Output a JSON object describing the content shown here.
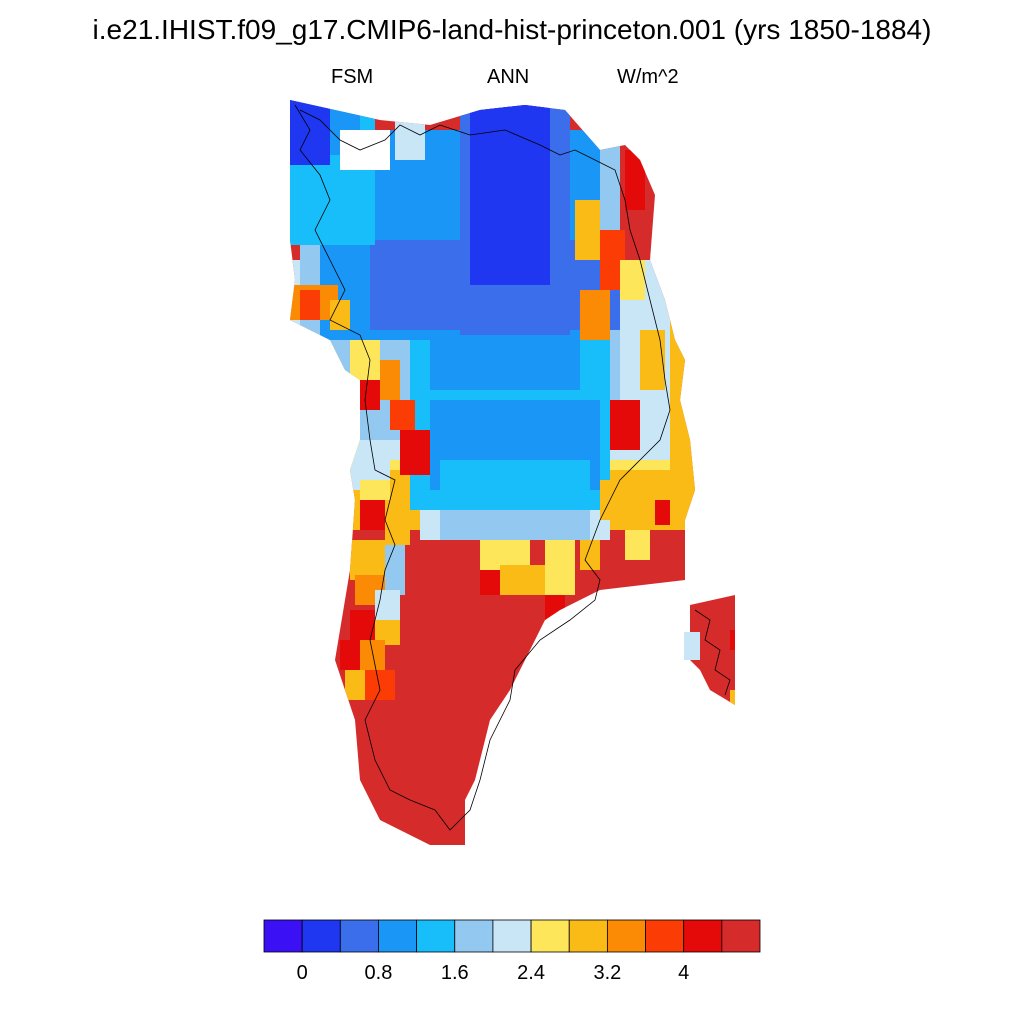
{
  "title": "i.e21.IHIST.f09_g17.CMIP6-land-hist-princeton.001 (yrs 1850-1884)",
  "subtitle": {
    "left": "FSM",
    "center": "ANN",
    "right": "W/m^2"
  },
  "colorbar": {
    "colors": [
      "#3b10f5",
      "#1f37f0",
      "#3a6eea",
      "#1a96f7",
      "#18bef9",
      "#93c8f0",
      "#c8e6f6",
      "#fde65a",
      "#fbbb16",
      "#fb8a05",
      "#fb3c05",
      "#e40a0a",
      "#d62b2b"
    ],
    "labels": [
      "0",
      "0.8",
      "1.6",
      "2.4",
      "3.2",
      "4"
    ]
  },
  "map": {
    "region_name": "greenland-ice-sheet",
    "field_name": "FSM"
  }
}
